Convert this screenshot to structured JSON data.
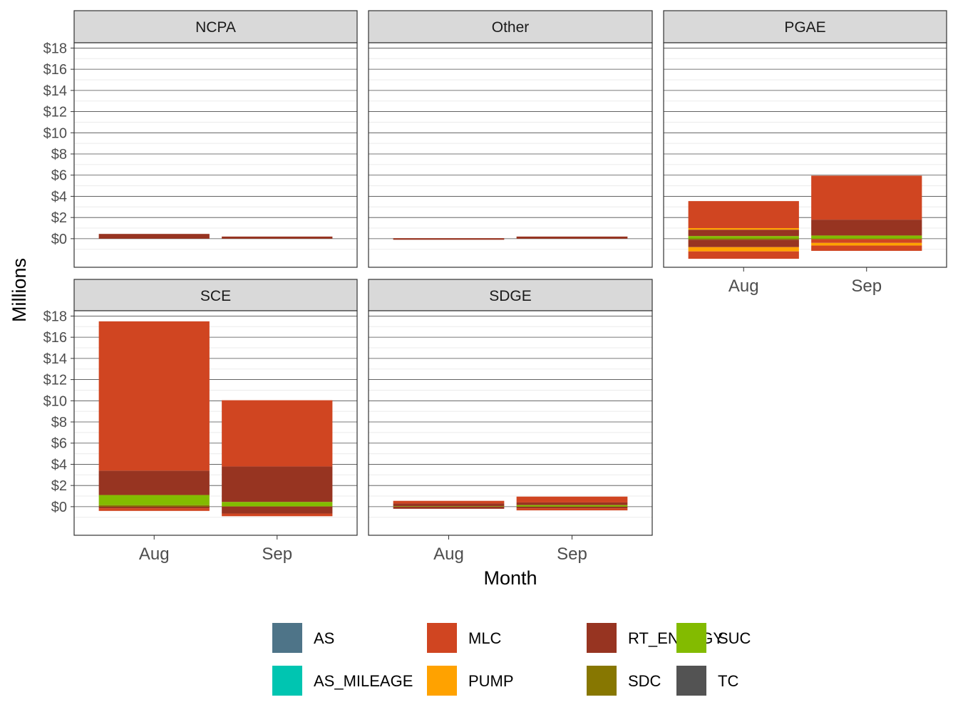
{
  "chart_data": {
    "type": "bar",
    "stacked": true,
    "xlabel": "Month",
    "ylabel": "Millions",
    "categories": [
      "Aug",
      "Sep"
    ],
    "y_ticks": [
      0,
      2,
      4,
      6,
      8,
      10,
      12,
      14,
      16,
      18
    ],
    "y_tick_labels": [
      "$0",
      "$2",
      "$4",
      "$6",
      "$8",
      "$10",
      "$12",
      "$14",
      "$16",
      "$18"
    ],
    "ylim": [
      -2.7,
      18.5
    ],
    "grid": true,
    "legend_position": "bottom",
    "series_colors": {
      "AS": "#4E7488",
      "AS_MILEAGE": "#00C5B1",
      "MLC": "#D04521",
      "PUMP": "#FFA200",
      "RT_ENERGY": "#973421",
      "SDC": "#877701",
      "SUC": "#83BB00",
      "TC": "#535353"
    },
    "legend": [
      "AS",
      "AS_MILEAGE",
      "MLC",
      "PUMP",
      "RT_ENERGY",
      "SDC",
      "SUC",
      "TC"
    ],
    "panels": [
      {
        "name": "NCPA",
        "segments": {
          "Aug": [
            [
              "RT_ENERGY",
              0.0,
              0.45
            ]
          ],
          "Sep": [
            [
              "RT_ENERGY",
              0.0,
              0.2
            ]
          ]
        }
      },
      {
        "name": "Other",
        "segments": {
          "Aug": [
            [
              "RT_ENERGY",
              -0.1,
              0.05
            ]
          ],
          "Sep": [
            [
              "RT_ENERGY",
              0.0,
              0.2
            ]
          ]
        }
      },
      {
        "name": "PGAE",
        "segments": {
          "Aug": [
            [
              "SUC",
              0.0,
              0.25
            ],
            [
              "RT_ENERGY",
              0.25,
              0.85
            ],
            [
              "PUMP",
              0.85,
              1.0
            ],
            [
              "MLC",
              1.0,
              3.55
            ],
            [
              "SDC",
              -0.1,
              0.0
            ],
            [
              "RT_ENERGY",
              -0.1,
              -0.8
            ],
            [
              "PUMP",
              -0.8,
              -1.2
            ],
            [
              "MLC",
              -1.2,
              -1.9
            ]
          ],
          "Sep": [
            [
              "SUC",
              0.0,
              0.3
            ],
            [
              "RT_ENERGY",
              0.3,
              1.8
            ],
            [
              "MLC",
              1.8,
              5.95
            ],
            [
              "SDC",
              -0.05,
              0.0
            ],
            [
              "MLC",
              -0.05,
              -0.4
            ],
            [
              "PUMP",
              -0.4,
              -0.65
            ],
            [
              "MLC",
              -0.65,
              -1.15
            ]
          ]
        }
      },
      {
        "name": "SCE",
        "segments": {
          "Aug": [
            [
              "SDC",
              0.0,
              0.15
            ],
            [
              "SUC",
              0.15,
              1.1
            ],
            [
              "RT_ENERGY",
              1.1,
              3.4
            ],
            [
              "MLC",
              3.4,
              17.5
            ],
            [
              "RT_ENERGY",
              0.0,
              -0.15
            ],
            [
              "MLC",
              -0.15,
              -0.4
            ]
          ],
          "Sep": [
            [
              "SDC",
              0.0,
              0.05
            ],
            [
              "SUC",
              0.05,
              0.45
            ],
            [
              "RT_ENERGY",
              0.45,
              3.8
            ],
            [
              "MLC",
              3.8,
              10.05
            ],
            [
              "RT_ENERGY",
              0.0,
              -0.65
            ],
            [
              "MLC",
              -0.65,
              -0.9
            ]
          ]
        }
      },
      {
        "name": "SDGE",
        "segments": {
          "Aug": [
            [
              "SUC",
              0.0,
              0.05
            ],
            [
              "RT_ENERGY",
              0.05,
              0.3
            ],
            [
              "MLC",
              0.3,
              0.55
            ],
            [
              "RT_ENERGY",
              0.0,
              -0.2
            ]
          ],
          "Sep": [
            [
              "SUC",
              0.0,
              0.15
            ],
            [
              "RT_ENERGY",
              0.15,
              0.4
            ],
            [
              "MLC",
              0.4,
              0.95
            ],
            [
              "RT_ENERGY",
              0.0,
              -0.15
            ],
            [
              "MLC",
              -0.15,
              -0.35
            ]
          ]
        }
      }
    ]
  }
}
